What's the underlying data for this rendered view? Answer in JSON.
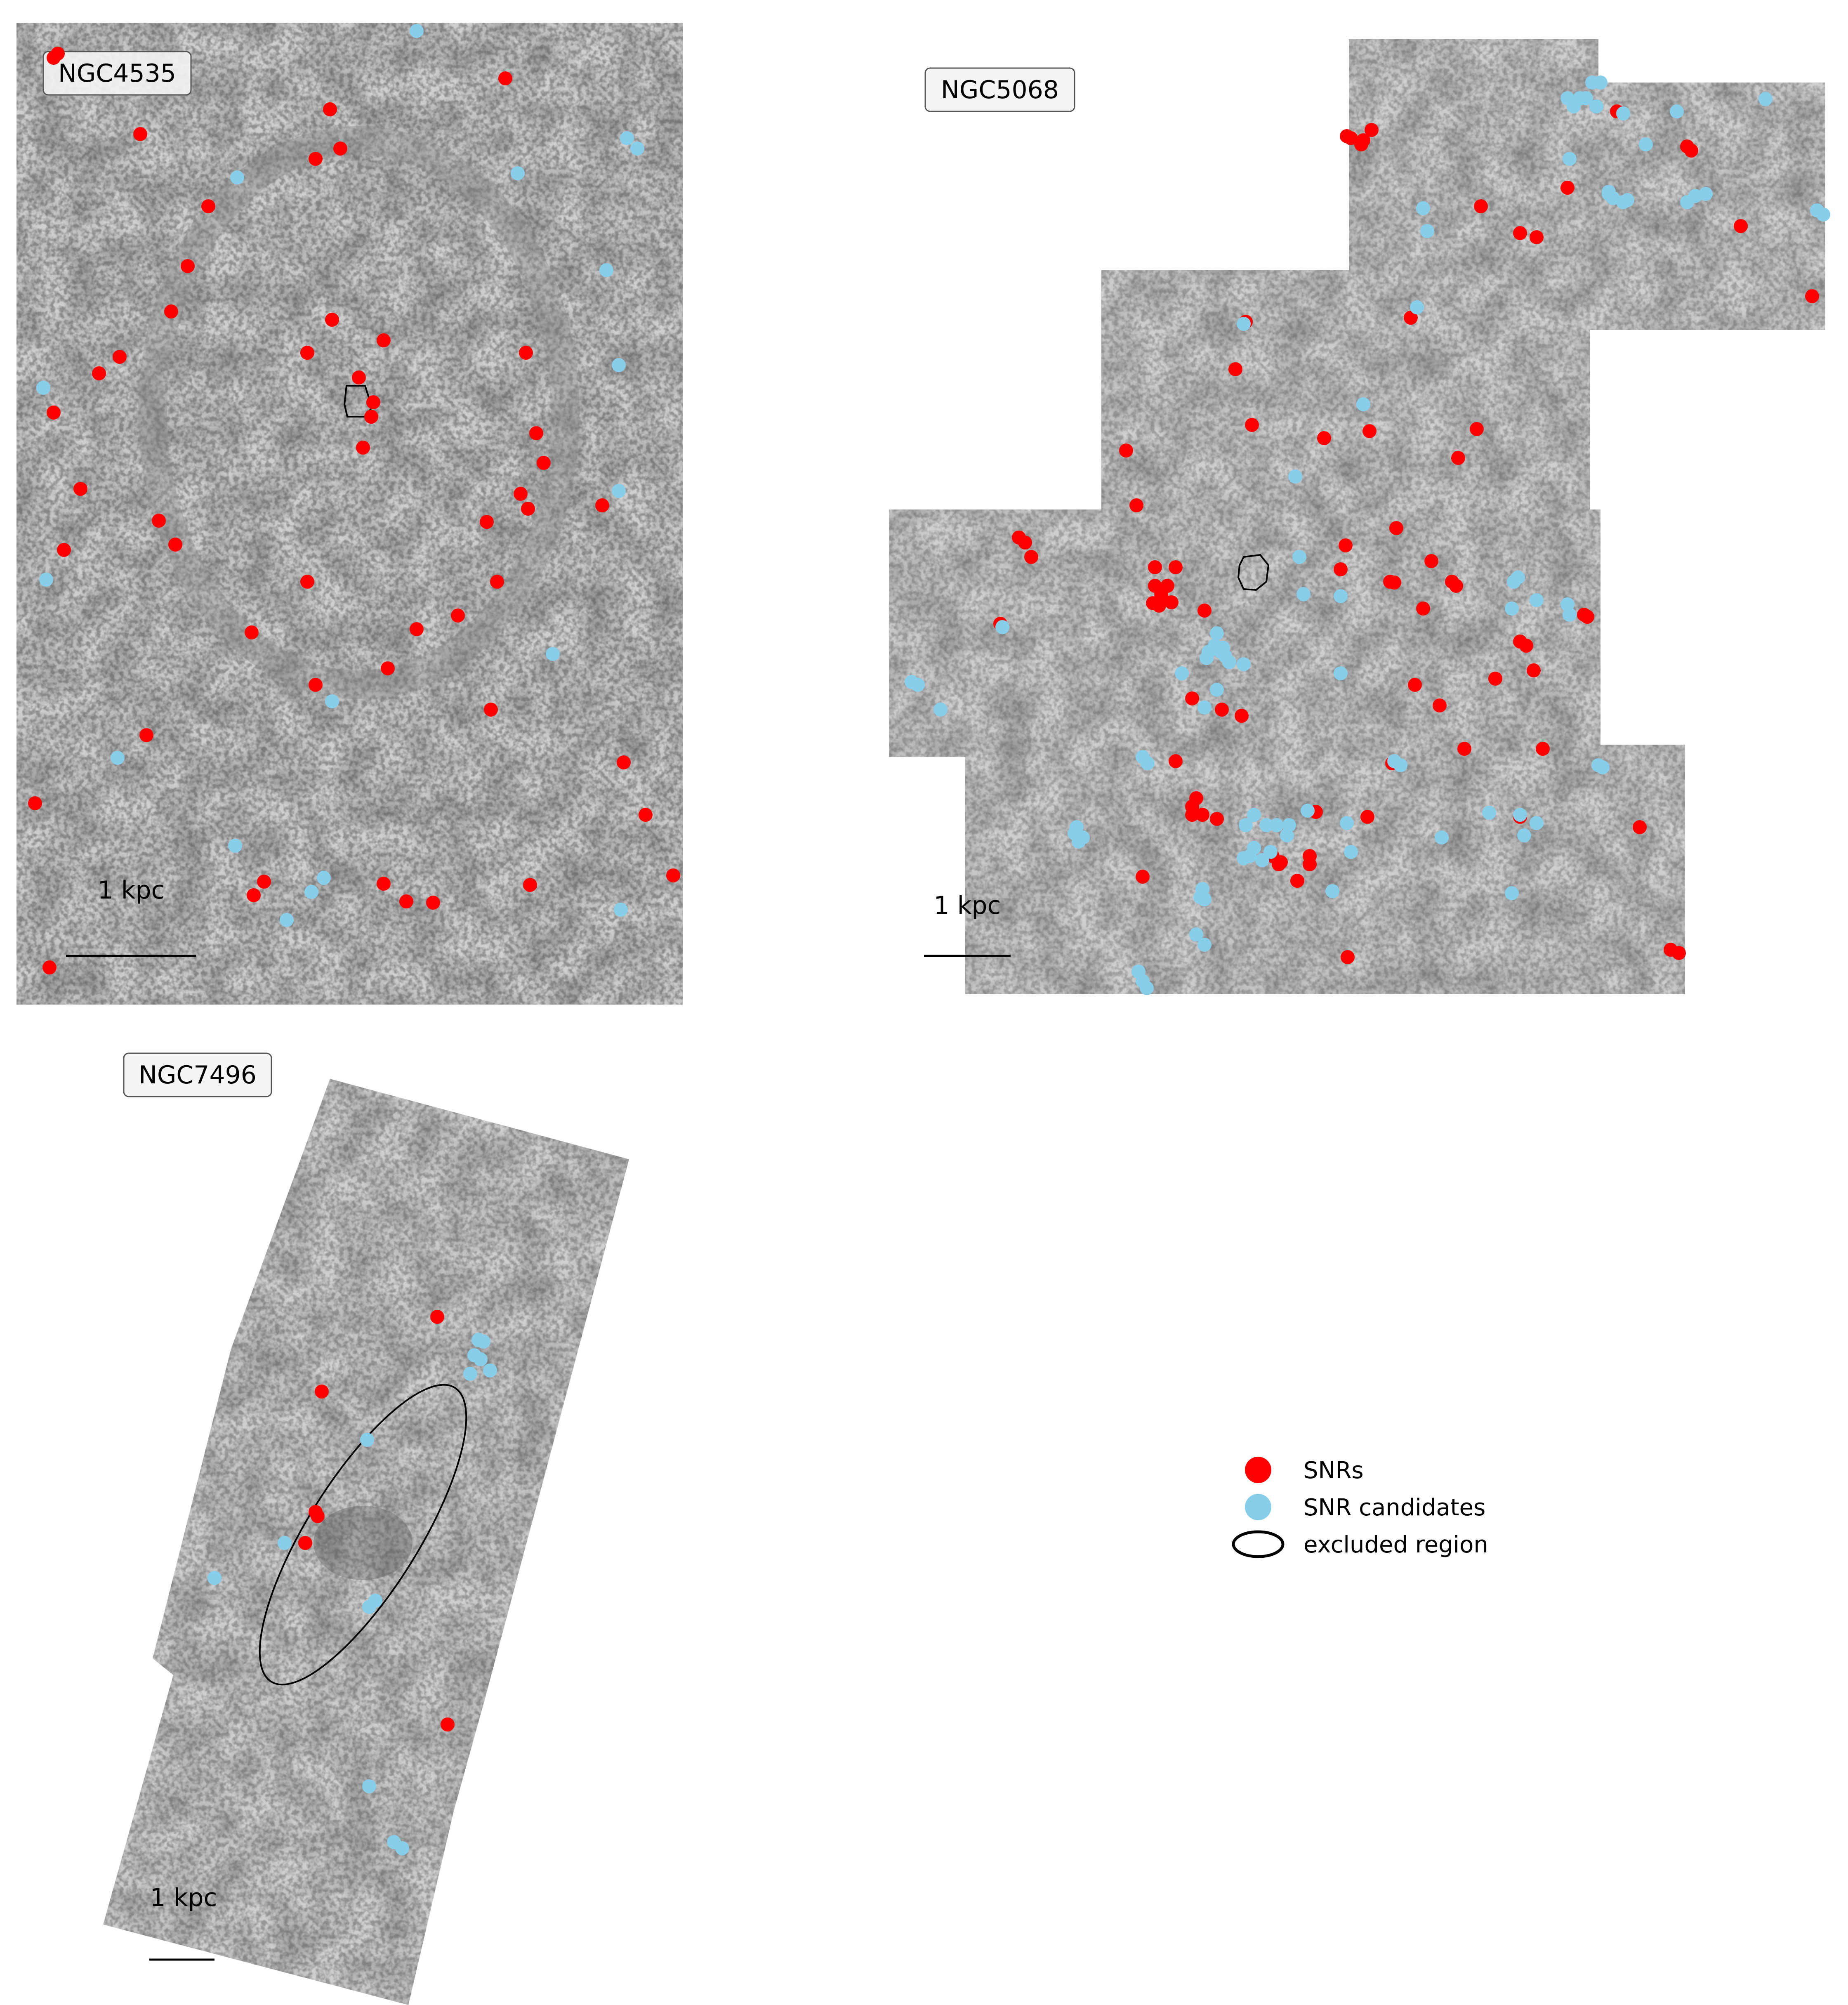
{
  "panels": [
    {
      "name": "NGC4535",
      "scale_label": "1 kpc"
    },
    {
      "name": "NGC5068",
      "scale_label": "1 kpc"
    },
    {
      "name": "NGC7496",
      "scale_label": "1 kpc"
    }
  ],
  "legend": {
    "snr_label": "SNRs",
    "candidate_label": "SNR candidates",
    "excluded_label": "excluded region"
  },
  "colors": {
    "snr": "#ff0000",
    "candidate": "#87ceeb",
    "background": "#c9c9c9",
    "excluded_outline": "#000000"
  }
}
